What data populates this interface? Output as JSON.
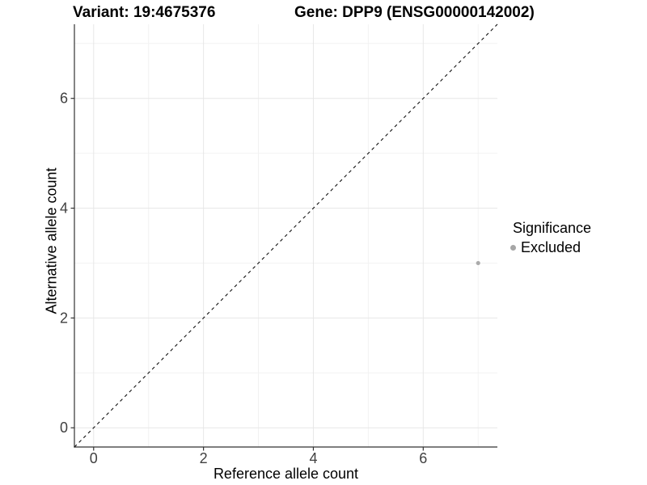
{
  "header": {
    "variant_title": "Variant: 19:4675376",
    "gene_title": "Gene: DPP9 (ENSG00000142002)"
  },
  "chart_data": {
    "type": "scatter",
    "xlabel": "Reference allele count",
    "ylabel": "Alternative allele count",
    "xlim": [
      -0.35,
      7.35
    ],
    "ylim": [
      -0.35,
      7.35
    ],
    "x_ticks": [
      0,
      2,
      4,
      6
    ],
    "y_ticks": [
      0,
      2,
      4,
      6
    ],
    "x_minor_gridlines": [
      1,
      3,
      5,
      7
    ],
    "y_minor_gridlines": [
      1,
      3,
      5,
      7
    ],
    "grid": "major+minor",
    "series": [
      {
        "name": "Excluded",
        "color": "#ababab",
        "points": [
          {
            "x": 7,
            "y": 3
          }
        ]
      }
    ],
    "reference_line": {
      "kind": "identity",
      "slope": 1,
      "intercept": 0,
      "style": "dashed",
      "color": "#111111"
    },
    "legend": {
      "title": "Significance",
      "position": "right",
      "items": [
        {
          "label": "Excluded",
          "color": "#a6a6a6"
        }
      ]
    },
    "styles": {
      "grid_major_color": "#e7e7e7",
      "grid_minor_color": "#f2f2f2",
      "axis_line_color": "#333333",
      "tick_color": "#333333",
      "tick_label_color": "#404040",
      "tick_label_size": 18,
      "point_radius": 2.6
    }
  }
}
